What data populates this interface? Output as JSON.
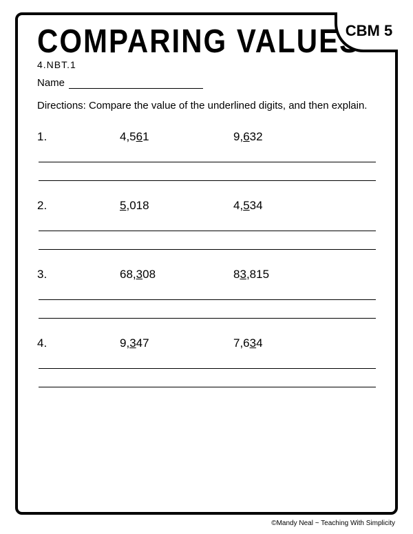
{
  "title": "COMPARING VALUES",
  "badge": "CBM 5",
  "standard": "4.NBT.1",
  "name_label": "Name",
  "directions": "Directions:  Compare the value of the underlined digits, and then explain.",
  "problems": [
    {
      "num": "1.",
      "v1_pre": "4,5",
      "v1_u": "6",
      "v1_post": "1",
      "v2_pre": "9,",
      "v2_u": "6",
      "v2_post": "32"
    },
    {
      "num": "2.",
      "v1_pre": "",
      "v1_u": "5",
      "v1_post": ",018",
      "v2_pre": "4,",
      "v2_u": "5",
      "v2_post": "34"
    },
    {
      "num": "3.",
      "v1_pre": "68,",
      "v1_u": "3",
      "v1_post": "08",
      "v2_pre": "8",
      "v2_u": "3",
      "v2_post": ",815"
    },
    {
      "num": "4.",
      "v1_pre": "9,",
      "v1_u": "3",
      "v1_post": "47",
      "v2_pre": "7,6",
      "v2_u": "3",
      "v2_post": "4"
    }
  ],
  "footer": "©Mandy Neal ~ Teaching With Simplicity",
  "colors": {
    "text": "#000000",
    "background": "#ffffff",
    "border": "#000000"
  },
  "typography": {
    "title_fontsize": 42,
    "body_fontsize": 15,
    "problem_fontsize": 17
  }
}
